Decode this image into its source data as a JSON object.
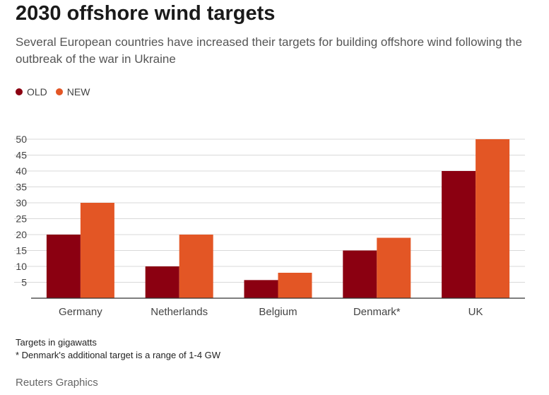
{
  "title": "2030 offshore wind targets",
  "subtitle": "Several European countries have increased their targets for building offshore wind following the outbreak of the war in Ukraine",
  "colors": {
    "old": "#8b0011",
    "new": "#e35625"
  },
  "chart_data": {
    "type": "bar",
    "title": "2030 offshore wind targets",
    "categories": [
      "Germany",
      "Netherlands",
      "Belgium",
      "Denmark*",
      "UK"
    ],
    "series": [
      {
        "name": "OLD",
        "values": [
          20,
          10,
          5.7,
          15,
          40
        ]
      },
      {
        "name": "NEW",
        "values": [
          30,
          20,
          8,
          19,
          50
        ]
      }
    ],
    "yticks": [
      5,
      10,
      15,
      20,
      25,
      30,
      35,
      40,
      45,
      50
    ],
    "ylim": [
      0,
      50
    ],
    "xlabel": "",
    "ylabel": "",
    "grid": true,
    "legend": "top-left"
  },
  "notes": {
    "line1": "Targets in gigawatts",
    "line2": "* Denmark's additional target is a range of 1-4 GW"
  },
  "source": "Reuters Graphics"
}
